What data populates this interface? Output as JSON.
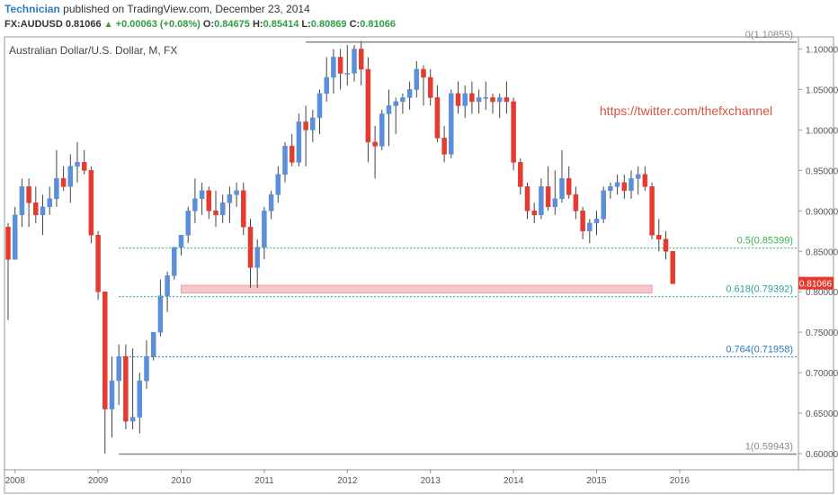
{
  "header": {
    "author": "Technician",
    "published_text": "published on TradingView.com, December 23, 2014",
    "symbol": "FX:AUDUSD",
    "last": "0.81066",
    "change": "+0.00063 (+0.08%)",
    "o_label": "O:",
    "o_value": "0.84675",
    "h_label": "H:",
    "h_value": "0.85414",
    "l_label": "L:",
    "l_value": "0.80869",
    "c_label": "C:",
    "c_value": "0.81066"
  },
  "chart_data": {
    "type": "candlestick",
    "title": "Australian Dollar/U.S. Dollar, M, FX",
    "x_axis": {
      "ticks": [
        "2008",
        "2009",
        "2010",
        "2011",
        "2012",
        "2013",
        "2014",
        "2015",
        "2016"
      ]
    },
    "y_axis": {
      "side": "right",
      "ylim": [
        0.58,
        1.115
      ],
      "ticks": [
        "0.60000",
        "0.65000",
        "0.70000",
        "0.75000",
        "0.80000",
        "0.85000",
        "0.90000",
        "0.95000",
        "1.00000",
        "1.05000",
        "1.10000"
      ]
    },
    "last_price": {
      "label": "0.81066",
      "value": 0.81066,
      "color": "#e53b2f"
    },
    "watermark": "https://twitter.com/thefxchannel",
    "fib_levels": [
      {
        "label": "0(1.10855)",
        "value": 1.10855,
        "color": "#888888",
        "style": "solid"
      },
      {
        "label": "0.5(0.85399)",
        "value": 0.85399,
        "color": "#3cb54a",
        "style": "dotted"
      },
      {
        "label": "0.618(0.79392)",
        "value": 0.79392,
        "color": "#2aa198",
        "style": "dotted"
      },
      {
        "label": "0.764(0.71958)",
        "value": 0.71958,
        "color": "#2b7bbd",
        "style": "dotted"
      },
      {
        "label": "1(0.59943)",
        "value": 0.59943,
        "color": "#888888",
        "style": "solid"
      }
    ],
    "zone": {
      "from": "2010-01",
      "to": "2015-09",
      "low": 0.7985,
      "high": 0.808,
      "color": "#f7c6c9"
    },
    "up_color": "#5b8fd9",
    "down_color": "#e53b2f",
    "candles": [
      [
        "2007-12",
        0.88,
        0.885,
        0.765,
        0.84
      ],
      [
        "2008-01",
        0.84,
        0.905,
        0.84,
        0.895
      ],
      [
        "2008-02",
        0.895,
        0.94,
        0.88,
        0.93
      ],
      [
        "2008-03",
        0.93,
        0.94,
        0.88,
        0.91
      ],
      [
        "2008-04",
        0.91,
        0.93,
        0.885,
        0.895
      ],
      [
        "2008-05",
        0.895,
        0.92,
        0.87,
        0.905
      ],
      [
        "2008-06",
        0.905,
        0.93,
        0.895,
        0.915
      ],
      [
        "2008-07",
        0.915,
        0.975,
        0.905,
        0.94
      ],
      [
        "2008-08",
        0.94,
        0.955,
        0.925,
        0.93
      ],
      [
        "2008-09",
        0.93,
        0.97,
        0.91,
        0.955
      ],
      [
        "2008-10",
        0.955,
        0.985,
        0.935,
        0.96
      ],
      [
        "2008-11",
        0.96,
        0.975,
        0.945,
        0.95
      ],
      [
        "2008-12",
        0.95,
        0.955,
        0.86,
        0.87
      ],
      [
        "2009-01",
        0.87,
        0.875,
        0.79,
        0.8
      ],
      [
        "2009-02",
        0.8,
        0.8,
        0.6,
        0.655
      ],
      [
        "2009-03",
        0.655,
        0.72,
        0.62,
        0.69
      ],
      [
        "2009-04",
        0.69,
        0.735,
        0.66,
        0.72
      ],
      [
        "2009-05",
        0.72,
        0.735,
        0.63,
        0.64
      ],
      [
        "2009-06",
        0.64,
        0.73,
        0.63,
        0.645
      ],
      [
        "2009-07",
        0.645,
        0.7,
        0.625,
        0.69
      ],
      [
        "2009-08",
        0.69,
        0.74,
        0.68,
        0.72
      ],
      [
        "2009-09",
        0.72,
        0.75,
        0.715,
        0.75
      ],
      [
        "2009-10",
        0.75,
        0.815,
        0.745,
        0.795
      ],
      [
        "2009-11",
        0.795,
        0.825,
        0.775,
        0.82
      ],
      [
        "2009-12",
        0.82,
        0.855,
        0.815,
        0.855
      ],
      [
        "2010-01",
        0.855,
        0.87,
        0.845,
        0.87
      ],
      [
        "2010-02",
        0.87,
        0.905,
        0.86,
        0.9
      ],
      [
        "2010-03",
        0.9,
        0.94,
        0.885,
        0.915
      ],
      [
        "2010-04",
        0.915,
        0.935,
        0.895,
        0.925
      ],
      [
        "2010-05",
        0.925,
        0.93,
        0.89,
        0.9
      ],
      [
        "2010-06",
        0.9,
        0.925,
        0.88,
        0.895
      ],
      [
        "2010-07",
        0.895,
        0.92,
        0.885,
        0.91
      ],
      [
        "2010-08",
        0.91,
        0.93,
        0.885,
        0.92
      ],
      [
        "2010-09",
        0.92,
        0.935,
        0.905,
        0.925
      ],
      [
        "2010-10",
        0.925,
        0.935,
        0.87,
        0.88
      ],
      [
        "2010-11",
        0.88,
        0.89,
        0.805,
        0.83
      ],
      [
        "2010-12",
        0.83,
        0.865,
        0.805,
        0.855
      ],
      [
        "2011-01",
        0.855,
        0.905,
        0.84,
        0.9
      ],
      [
        "2011-02",
        0.9,
        0.925,
        0.89,
        0.92
      ],
      [
        "2011-03",
        0.92,
        0.955,
        0.91,
        0.945
      ],
      [
        "2011-04",
        0.945,
        0.985,
        0.935,
        0.98
      ],
      [
        "2011-05",
        0.98,
        0.995,
        0.955,
        0.96
      ],
      [
        "2011-06",
        0.96,
        1.02,
        0.955,
        1.01
      ],
      [
        "2011-07",
        1.01,
        1.03,
        0.955,
        1.0
      ],
      [
        "2011-08",
        1.0,
        1.025,
        0.985,
        1.015
      ],
      [
        "2011-09",
        1.015,
        1.05,
        0.995,
        1.045
      ],
      [
        "2011-10",
        1.045,
        1.09,
        1.035,
        1.065
      ],
      [
        "2011-11",
        1.065,
        1.1,
        1.045,
        1.09
      ],
      [
        "2011-12",
        1.09,
        1.1,
        1.05,
        1.07
      ],
      [
        "2012-01",
        1.07,
        1.105,
        1.055,
        1.07
      ],
      [
        "2012-02",
        1.07,
        1.105,
        1.06,
        1.1
      ],
      [
        "2012-03",
        1.1,
        1.11,
        1.055,
        1.075
      ],
      [
        "2012-04",
        1.075,
        1.09,
        0.96,
        0.985
      ],
      [
        "2012-05",
        0.985,
        1.005,
        0.94,
        0.98
      ],
      [
        "2012-06",
        0.98,
        1.025,
        0.975,
        1.02
      ],
      [
        "2012-07",
        1.02,
        1.05,
        0.98,
        1.03
      ],
      [
        "2012-08",
        1.03,
        1.04,
        0.995,
        1.035
      ],
      [
        "2012-09",
        1.035,
        1.045,
        1.02,
        1.04
      ],
      [
        "2012-10",
        1.04,
        1.06,
        1.025,
        1.05
      ],
      [
        "2012-11",
        1.05,
        1.085,
        1.04,
        1.075
      ],
      [
        "2012-12",
        1.075,
        1.08,
        1.03,
        1.065
      ],
      [
        "2013-01",
        1.065,
        1.075,
        1.03,
        1.04
      ],
      [
        "2013-02",
        1.04,
        1.055,
        0.985,
        0.99
      ],
      [
        "2013-03",
        0.99,
        1.005,
        0.96,
        0.97
      ],
      [
        "2013-04",
        0.97,
        1.05,
        0.965,
        1.045
      ],
      [
        "2013-05",
        1.045,
        1.06,
        1.02,
        1.03
      ],
      [
        "2013-06",
        1.03,
        1.055,
        1.015,
        1.045
      ],
      [
        "2013-07",
        1.045,
        1.06,
        1.02,
        1.035
      ],
      [
        "2013-08",
        1.035,
        1.05,
        1.02,
        1.04
      ],
      [
        "2013-09",
        1.04,
        1.06,
        1.025,
        1.04
      ],
      [
        "2013-10",
        1.04,
        1.045,
        1.02,
        1.035
      ],
      [
        "2013-11",
        1.035,
        1.045,
        1.015,
        1.04
      ],
      [
        "2013-12",
        1.04,
        1.06,
        1.02,
        1.035
      ],
      [
        "2014-01",
        1.035,
        1.04,
        0.95,
        0.96
      ],
      [
        "2014-02",
        0.96,
        0.965,
        0.92,
        0.93
      ],
      [
        "2014-03",
        0.93,
        0.935,
        0.89,
        0.9
      ],
      [
        "2014-04",
        0.9,
        0.91,
        0.885,
        0.895
      ],
      [
        "2014-05",
        0.895,
        0.94,
        0.89,
        0.93
      ],
      [
        "2014-06",
        0.93,
        0.955,
        0.9,
        0.905
      ],
      [
        "2014-07",
        0.905,
        0.95,
        0.895,
        0.915
      ],
      [
        "2014-08",
        0.915,
        0.975,
        0.91,
        0.94
      ],
      [
        "2014-09",
        0.94,
        0.955,
        0.915,
        0.92
      ],
      [
        "2014-10",
        0.92,
        0.93,
        0.89,
        0.9
      ],
      [
        "2014-11",
        0.9,
        0.905,
        0.865,
        0.875
      ],
      [
        "2014-12",
        0.875,
        0.89,
        0.86,
        0.885
      ],
      [
        "2015-01",
        0.885,
        0.9,
        0.87,
        0.89
      ],
      [
        "2015-02",
        0.89,
        0.93,
        0.885,
        0.925
      ],
      [
        "2015-03",
        0.925,
        0.935,
        0.915,
        0.93
      ],
      [
        "2015-04",
        0.93,
        0.945,
        0.92,
        0.935
      ],
      [
        "2015-05",
        0.935,
        0.945,
        0.915,
        0.925
      ],
      [
        "2015-06",
        0.925,
        0.95,
        0.915,
        0.94
      ],
      [
        "2015-07",
        0.94,
        0.955,
        0.92,
        0.945
      ],
      [
        "2015-08",
        0.945,
        0.955,
        0.925,
        0.93
      ],
      [
        "2015-09",
        0.93,
        0.935,
        0.865,
        0.87
      ],
      [
        "2015-10",
        0.87,
        0.89,
        0.85,
        0.865
      ],
      [
        "2015-11",
        0.865,
        0.875,
        0.84,
        0.85
      ],
      [
        "2015-12",
        0.85,
        0.85,
        0.81,
        0.81
      ]
    ]
  }
}
